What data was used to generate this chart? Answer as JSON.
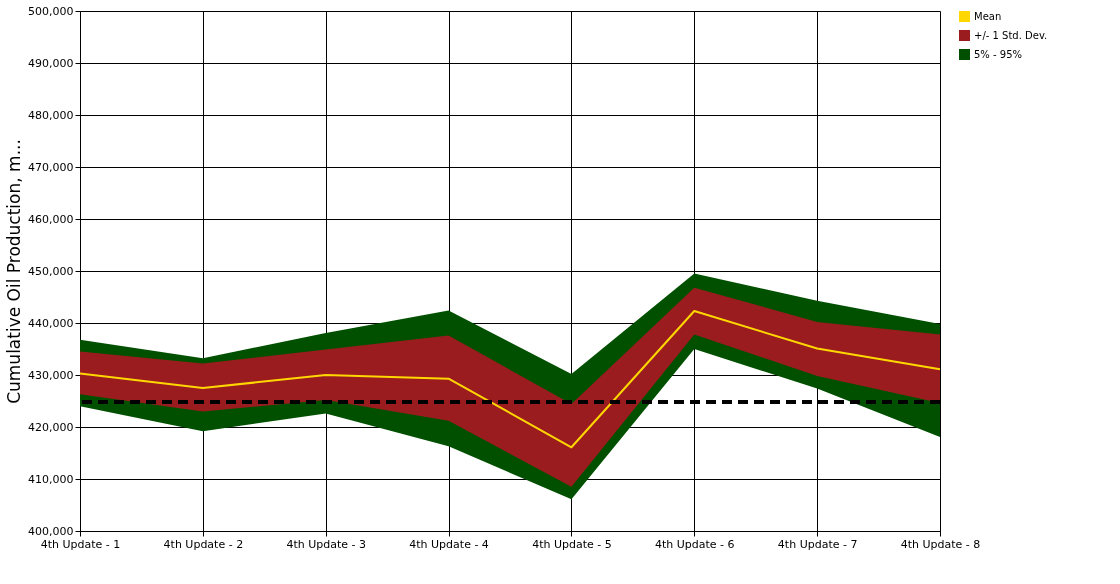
{
  "chart_data": {
    "type": "line",
    "ylabel": "Cumulative Oil Production, m...",
    "categories": [
      "4th Update - 1",
      "4th Update - 2",
      "4th Update - 3",
      "4th Update - 4",
      "4th Update - 5",
      "4th Update - 6",
      "4th Update - 7",
      "4th Update - 8"
    ],
    "series": [
      {
        "name": "Mean",
        "color": "#ffd700",
        "values": [
          430300,
          427500,
          430000,
          429300,
          416100,
          442300,
          435100,
          431100
        ]
      },
      {
        "name": "+/- 1 Std. Dev.",
        "type": "area",
        "color": "#9b1c1f",
        "values": [
          null,
          null,
          null,
          null,
          null,
          null,
          null,
          null
        ],
        "lower": [
          426300,
          423000,
          425200,
          421200,
          408500,
          437800,
          429800,
          424600
        ],
        "upper": [
          434500,
          432200,
          434900,
          437600,
          424400,
          446800,
          440200,
          437800
        ]
      },
      {
        "name": "5% - 95%",
        "type": "area",
        "color": "#005000",
        "values": [
          null,
          null,
          null,
          null,
          null,
          null,
          null,
          null
        ],
        "lower": [
          424000,
          419200,
          422600,
          416300,
          406100,
          435000,
          427400,
          418100
        ],
        "upper": [
          436800,
          433200,
          438100,
          442400,
          430200,
          449500,
          444300,
          439800
        ]
      }
    ],
    "ylim": [
      400000,
      500000
    ],
    "yticks": [
      {
        "value": 400000,
        "label": "400,000"
      },
      {
        "value": 410000,
        "label": "410,000"
      },
      {
        "value": 420000,
        "label": "420,000"
      },
      {
        "value": 430000,
        "label": "430,000"
      },
      {
        "value": 440000,
        "label": "440,000"
      },
      {
        "value": 450000,
        "label": "450,000"
      },
      {
        "value": 460000,
        "label": "460,000"
      },
      {
        "value": 470000,
        "label": "470,000"
      },
      {
        "value": 480000,
        "label": "480,000"
      },
      {
        "value": 490000,
        "label": "490,000"
      },
      {
        "value": 500000,
        "label": "500,000"
      }
    ],
    "ref_lines": [
      {
        "axis": "y",
        "value": 424800,
        "color": "#000000",
        "line_style": "dashed"
      }
    ],
    "grid": true,
    "legend": "right"
  }
}
